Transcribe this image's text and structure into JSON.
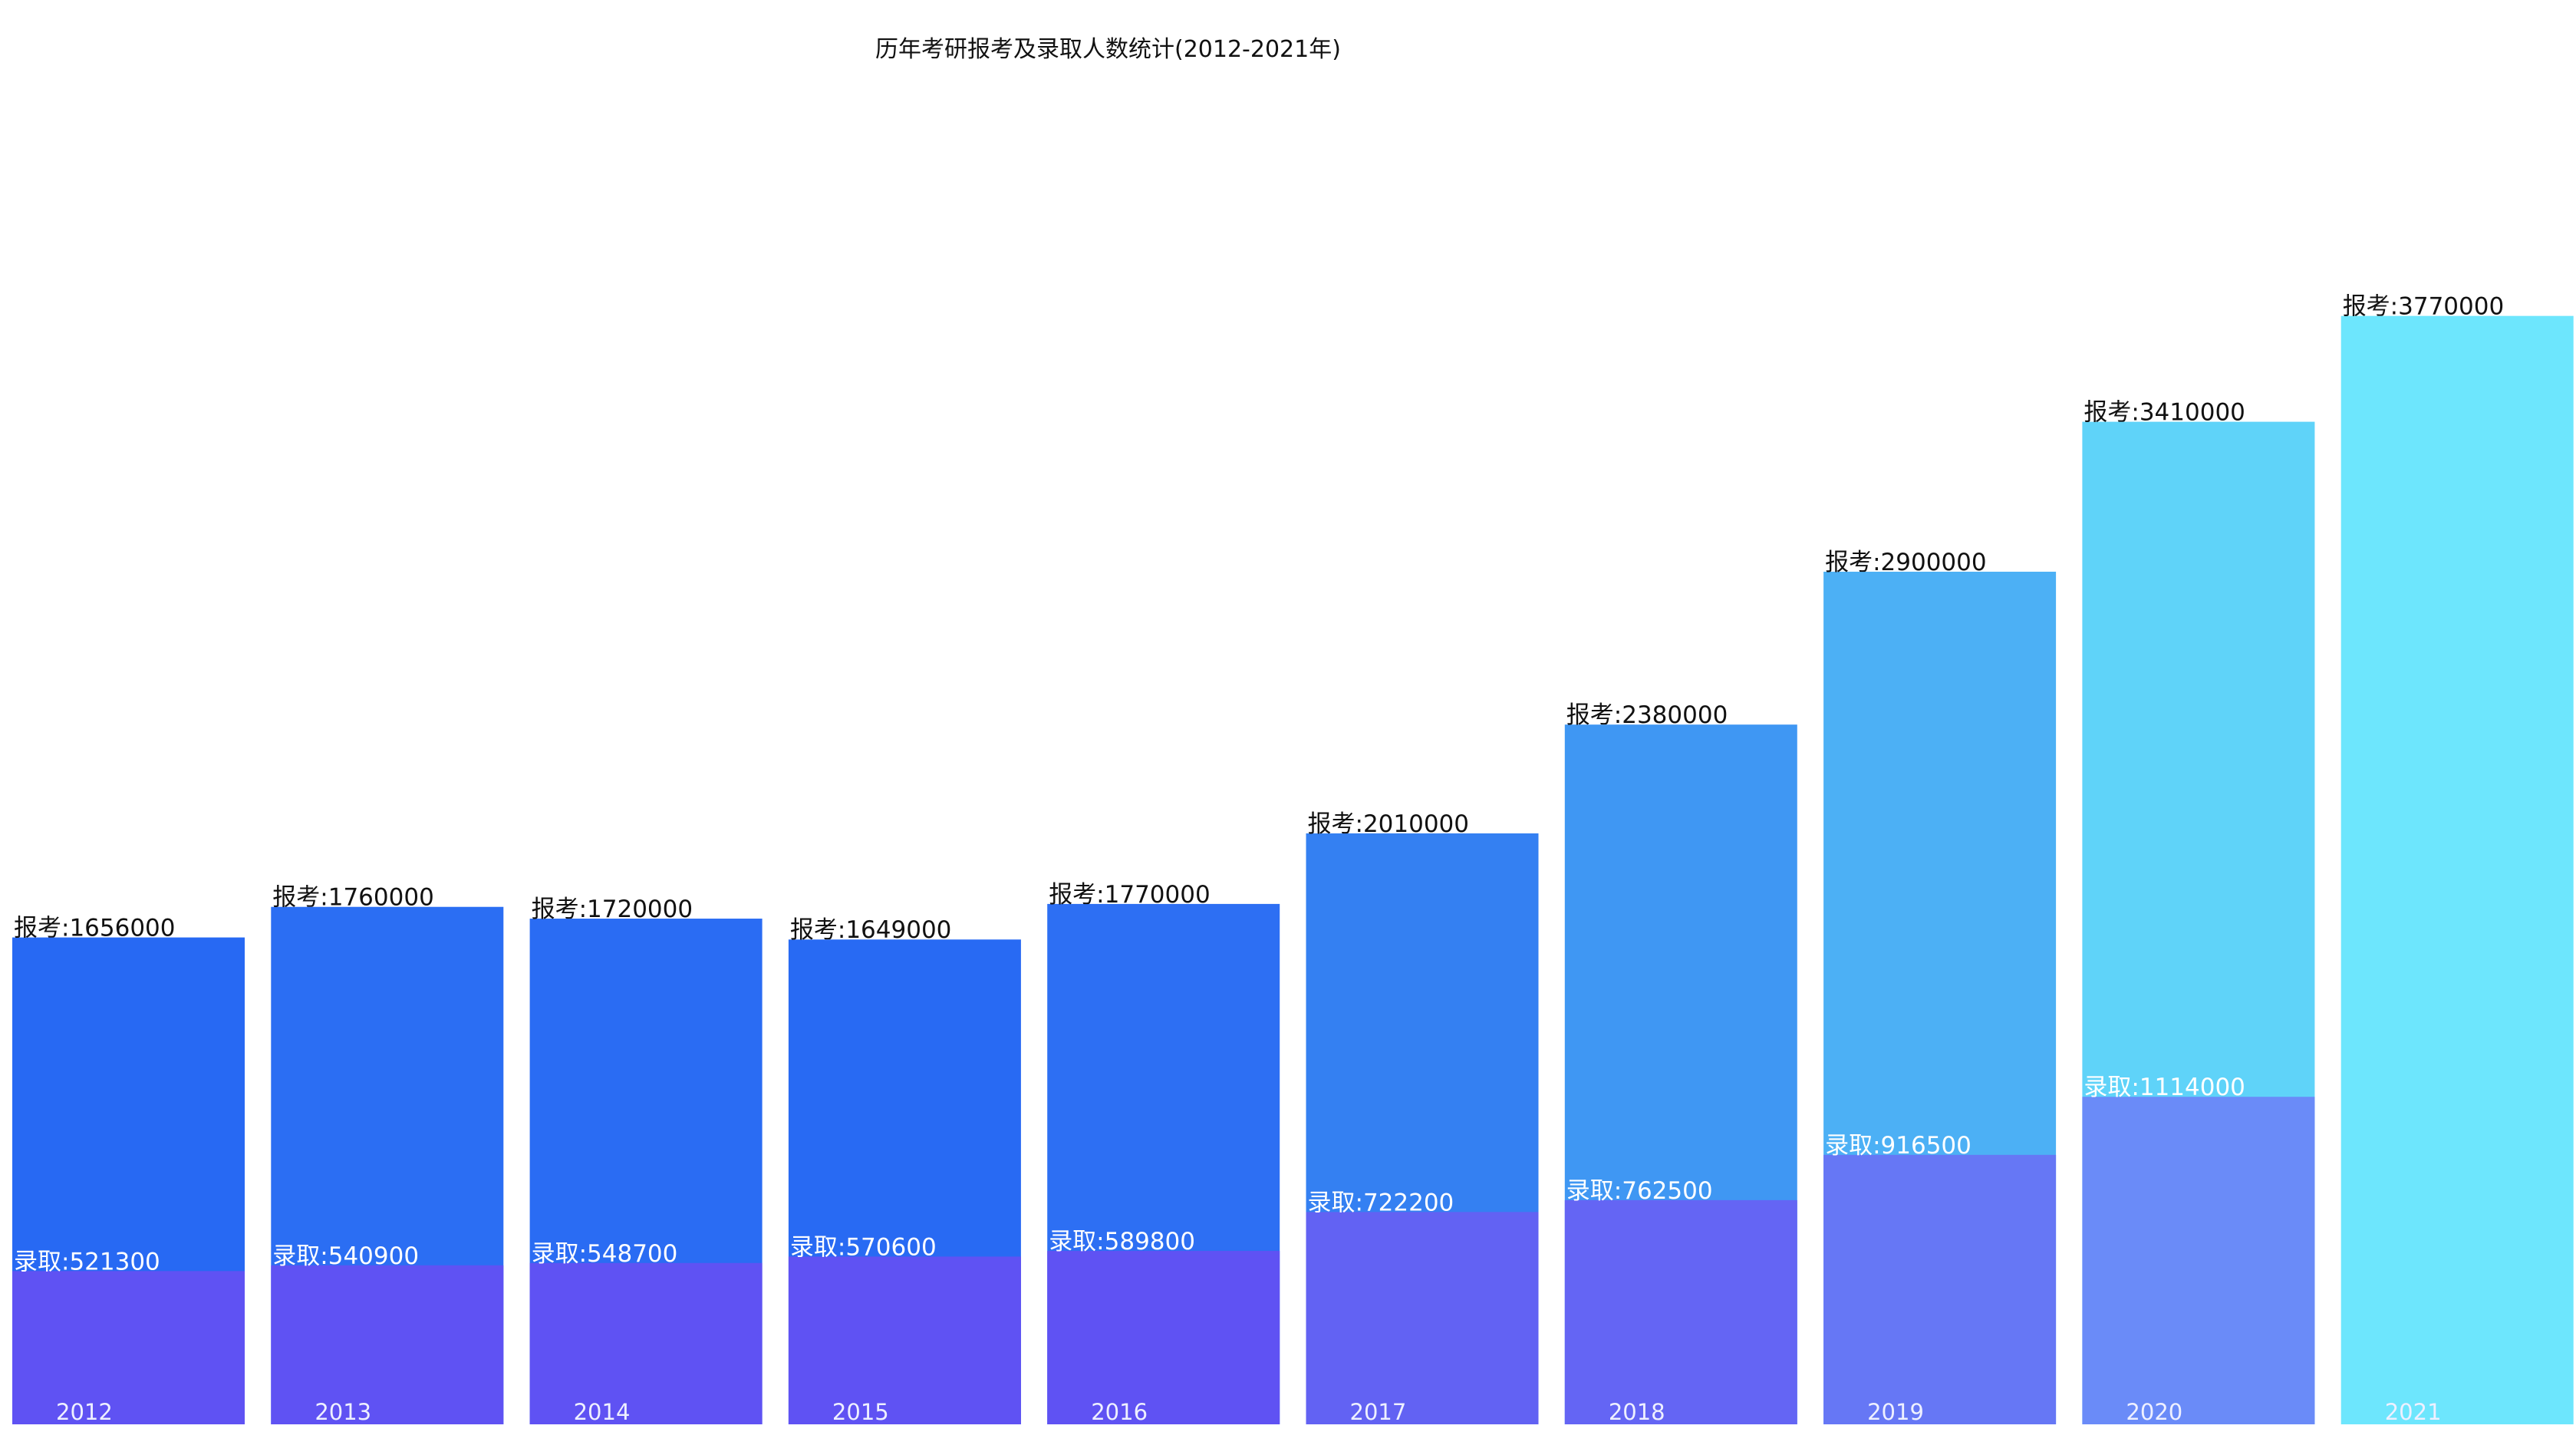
{
  "chart_data": {
    "type": "bar",
    "title": "历年考研报考及录取人数统计(2012-2021年)",
    "xlabel": "",
    "ylabel": "",
    "ylim": [
      0,
      4500000
    ],
    "grid": false,
    "legend": "none",
    "categories": [
      "2012",
      "2013",
      "2014",
      "2015",
      "2016",
      "2017",
      "2018",
      "2019",
      "2020",
      "2021"
    ],
    "series": [
      {
        "name": "报考",
        "label_prefix": "报考:",
        "values": [
          1656000,
          1760000,
          1720000,
          1649000,
          1770000,
          2010000,
          2380000,
          2900000,
          3410000,
          3770000
        ],
        "colors": [
          "#2769f3",
          "#2b6ef3",
          "#2a6cf3",
          "#286af3",
          "#2d6ff3",
          "#3480f2",
          "#3f97f3",
          "#4cb0f5",
          "#5fd3f9",
          "#6de6fd"
        ]
      },
      {
        "name": "录取",
        "label_prefix": "录取:",
        "values": [
          521300,
          540900,
          548700,
          570600,
          589800,
          722200,
          762500,
          916500,
          1114000,
          0
        ],
        "colors": [
          "#5f52f3",
          "#5f52f3",
          "#5f52f3",
          "#5f52f3",
          "#5f52f3",
          "#6262f3",
          "#6465f4",
          "#6677f5",
          "#6a8bf8",
          "#6de6fd"
        ]
      }
    ]
  }
}
